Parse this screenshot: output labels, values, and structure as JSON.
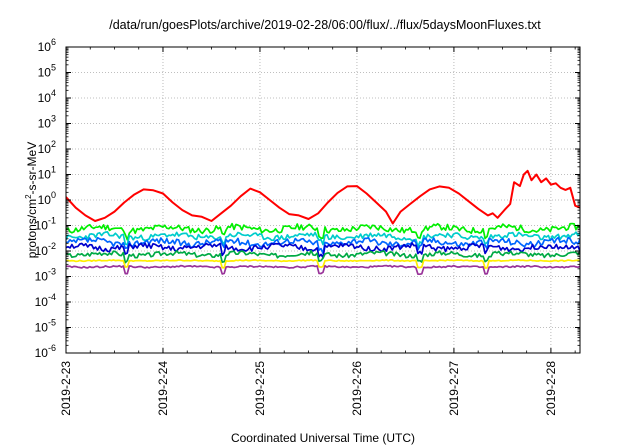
{
  "chart_data": {
    "type": "line",
    "title": "/data/run/goesPlots/archive/2019-02-28/06:00/flux/../flux/5daysMoonFluxes.txt",
    "xlabel": "Coordinated Universal Time (UTC)",
    "ylabel": {
      "prefix": "protons/cm",
      "sup": "2",
      "suffix": "-s-sr-MeV"
    },
    "y_scale": "log",
    "ylim_exponents": [
      -6,
      6
    ],
    "y_ticks": [
      {
        "base": "10",
        "exp": "6"
      },
      {
        "base": "10",
        "exp": "5"
      },
      {
        "base": "10",
        "exp": "4"
      },
      {
        "base": "10",
        "exp": "3"
      },
      {
        "base": "10",
        "exp": "2"
      },
      {
        "base": "10",
        "exp": "1"
      },
      {
        "base": "10",
        "exp": "0"
      },
      {
        "base": "10",
        "exp": "-1"
      },
      {
        "base": "10",
        "exp": "-2"
      },
      {
        "base": "10",
        "exp": "-3"
      },
      {
        "base": "10",
        "exp": "-4"
      },
      {
        "base": "10",
        "exp": "-5"
      },
      {
        "base": "10",
        "exp": "-6"
      }
    ],
    "xlim_days": [
      0,
      5.3
    ],
    "x_ticks": [
      "2019-2-23",
      "2019-2-24",
      "2019-2-25",
      "2019-2-26",
      "2019-2-27",
      "2019-2-28"
    ],
    "grid": true,
    "series": [
      {
        "color": "#ff0000",
        "points": [
          [
            0.0,
            1.3
          ],
          [
            0.1,
            0.5
          ],
          [
            0.2,
            0.25
          ],
          [
            0.3,
            0.15
          ],
          [
            0.4,
            0.2
          ],
          [
            0.5,
            0.35
          ],
          [
            0.6,
            0.8
          ],
          [
            0.7,
            1.6
          ],
          [
            0.8,
            2.6
          ],
          [
            0.9,
            2.4
          ],
          [
            1.0,
            1.8
          ],
          [
            1.1,
            0.8
          ],
          [
            1.2,
            0.4
          ],
          [
            1.3,
            0.25
          ],
          [
            1.4,
            0.22
          ],
          [
            1.5,
            0.15
          ],
          [
            1.6,
            0.3
          ],
          [
            1.7,
            0.6
          ],
          [
            1.8,
            1.4
          ],
          [
            1.9,
            2.8
          ],
          [
            2.0,
            2.0
          ],
          [
            2.1,
            1.0
          ],
          [
            2.2,
            0.5
          ],
          [
            2.3,
            0.28
          ],
          [
            2.4,
            0.25
          ],
          [
            2.5,
            0.18
          ],
          [
            2.6,
            0.3
          ],
          [
            2.7,
            0.8
          ],
          [
            2.8,
            1.9
          ],
          [
            2.9,
            3.4
          ],
          [
            3.0,
            3.5
          ],
          [
            3.1,
            1.8
          ],
          [
            3.2,
            0.8
          ],
          [
            3.3,
            0.35
          ],
          [
            3.37,
            0.12
          ],
          [
            3.45,
            0.35
          ],
          [
            3.55,
            0.7
          ],
          [
            3.65,
            1.4
          ],
          [
            3.75,
            2.6
          ],
          [
            3.85,
            3.4
          ],
          [
            3.95,
            3.0
          ],
          [
            4.05,
            1.8
          ],
          [
            4.15,
            0.9
          ],
          [
            4.25,
            0.45
          ],
          [
            4.35,
            0.25
          ],
          [
            4.4,
            0.3
          ],
          [
            4.45,
            0.2
          ],
          [
            4.52,
            0.4
          ],
          [
            4.58,
            0.7
          ],
          [
            4.62,
            5.0
          ],
          [
            4.68,
            3.5
          ],
          [
            4.72,
            10.0
          ],
          [
            4.76,
            14.0
          ],
          [
            4.8,
            6.0
          ],
          [
            4.85,
            10.0
          ],
          [
            4.9,
            5.0
          ],
          [
            4.95,
            7.0
          ],
          [
            5.0,
            4.0
          ],
          [
            5.05,
            4.5
          ],
          [
            5.1,
            3.0
          ],
          [
            5.15,
            2.5
          ],
          [
            5.2,
            3.0
          ],
          [
            5.25,
            0.6
          ],
          [
            5.3,
            0.5
          ]
        ]
      },
      {
        "color": "#00ee00",
        "base": 0.075,
        "amp": 0.25,
        "seed": 11
      },
      {
        "color": "#00cccc",
        "base": 0.038,
        "amp": 0.22,
        "seed": 23
      },
      {
        "color": "#0066ff",
        "base": 0.022,
        "amp": 0.25,
        "seed": 37
      },
      {
        "color": "#0000cc",
        "base": 0.014,
        "amp": 0.22,
        "seed": 51
      },
      {
        "color": "#00aa44",
        "base": 0.0075,
        "amp": 0.18,
        "seed": 67
      },
      {
        "color": "#ffee00",
        "base": 0.0042,
        "amp": 0.04,
        "seed": 79
      },
      {
        "color": "#993399",
        "base": 0.0024,
        "amp": 0.06,
        "seed": 91
      }
    ]
  }
}
